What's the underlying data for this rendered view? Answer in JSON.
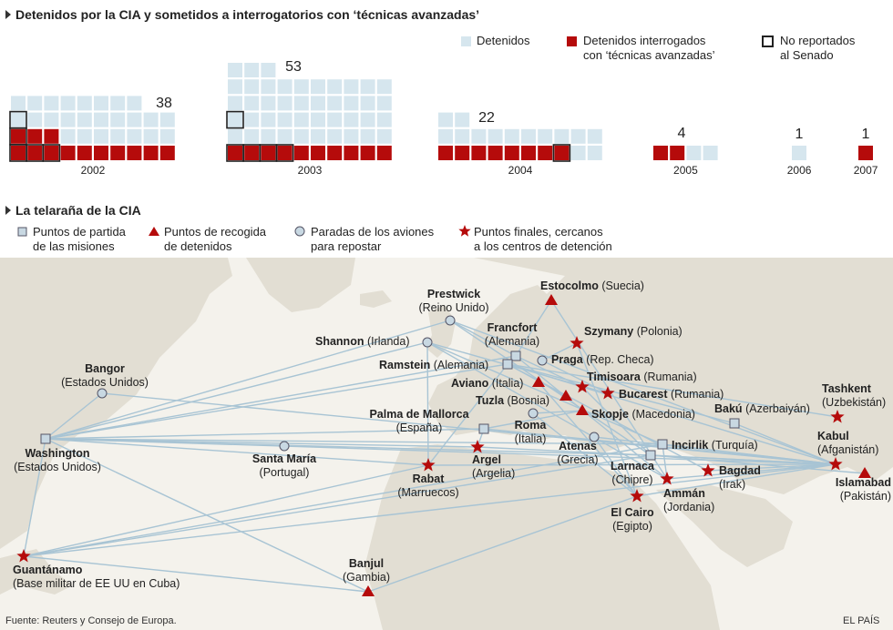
{
  "section1": {
    "title": "Detenidos por la CIA y sometidos a interrogatorios con ‘técnicas avanzadas’",
    "legend": [
      {
        "label": "Detenidos",
        "kind": "light"
      },
      {
        "label": "Detenidos interrogados\ncon ‘técnicas avanzadas’",
        "kind": "red"
      },
      {
        "label": "No reportados\nal Senado",
        "kind": "outline"
      }
    ]
  },
  "chart_data": {
    "type": "bar",
    "categories": [
      "2002",
      "2003",
      "2004",
      "2005",
      "2006",
      "2007"
    ],
    "series": [
      {
        "name": "Detenidos",
        "values": [
          38,
          53,
          22,
          4,
          1,
          1
        ]
      },
      {
        "name": "Detenidos interrogados con ‘técnicas avanzadas’",
        "values": [
          13,
          10,
          8,
          2,
          0,
          1
        ]
      },
      {
        "name": "No reportados al Senado",
        "values": [
          5,
          5,
          1,
          0,
          0,
          0
        ]
      }
    ],
    "labels": [
      "38",
      "53",
      "22",
      "4",
      "1",
      "1"
    ]
  },
  "section2": {
    "title": "La telaraña de la CIA",
    "legend": [
      {
        "label": "Puntos de partida\nde las misiones",
        "kind": "square"
      },
      {
        "label": "Puntos de recogida\nde detenidos",
        "kind": "triangle"
      },
      {
        "label": "Paradas de los aviones\npara repostar",
        "kind": "circle"
      },
      {
        "label": "Puntos finales, cercanos\na los centros de detención",
        "kind": "star"
      }
    ]
  },
  "map": {
    "places": [
      {
        "id": "washington",
        "name": "Washington",
        "sub": "(Estados Unidos)",
        "kind": "square"
      },
      {
        "id": "bangor",
        "name": "Bangor",
        "sub": "(Estados Unidos)",
        "kind": "circle"
      },
      {
        "id": "guantanamo",
        "name": "Guantánamo",
        "sub": "(Base militar de EE UU en Cuba)",
        "kind": "star"
      },
      {
        "id": "santamaria",
        "name": "Santa María",
        "sub": "(Portugal)",
        "kind": "circle"
      },
      {
        "id": "banjul",
        "name": "Banjul",
        "sub": "(Gambia)",
        "kind": "triangle"
      },
      {
        "id": "prestwick",
        "name": "Prestwick",
        "sub": "(Reino Unido)",
        "kind": "circle"
      },
      {
        "id": "shannon",
        "name": "Shannon",
        "sub": "(Irlanda)",
        "kind": "circle"
      },
      {
        "id": "rabat",
        "name": "Rabat",
        "sub": "(Marruecos)",
        "kind": "star"
      },
      {
        "id": "palma",
        "name": "Palma de Mallorca",
        "sub": "(España)",
        "kind": "square"
      },
      {
        "id": "argel",
        "name": "Argel",
        "sub": "(Argelia)",
        "kind": "star"
      },
      {
        "id": "francfort",
        "name": "Francfort",
        "sub": "(Alemania)",
        "kind": "square"
      },
      {
        "id": "ramstein",
        "name": "Ramstein",
        "sub": "(Alemania)",
        "kind": "square"
      },
      {
        "id": "estocolmo",
        "name": "Estocolmo",
        "sub": "(Suecia)",
        "kind": "triangle"
      },
      {
        "id": "praga",
        "name": "Praga",
        "sub": "(Rep. Checa)",
        "kind": "circle"
      },
      {
        "id": "szymany",
        "name": "Szymany",
        "sub": "(Polonia)",
        "kind": "star"
      },
      {
        "id": "aviano",
        "name": "Aviano",
        "sub": "(Italia)",
        "kind": "triangle"
      },
      {
        "id": "timisoara",
        "name": "Timisoara",
        "sub": "(Rumania)",
        "kind": "star"
      },
      {
        "id": "bucarest",
        "name": "Bucarest",
        "sub": "(Rumania)",
        "kind": "star"
      },
      {
        "id": "tuzla",
        "name": "Tuzla",
        "sub": "(Bosnia)",
        "kind": "triangle"
      },
      {
        "id": "roma",
        "name": "Roma",
        "sub": "(Italia)",
        "kind": "circle"
      },
      {
        "id": "skopje",
        "name": "Skopje",
        "sub": "(Macedonia)",
        "kind": "triangle"
      },
      {
        "id": "atenas",
        "name": "Atenas",
        "sub": "(Grecia)",
        "kind": "circle"
      },
      {
        "id": "larnaca",
        "name": "Larnaca",
        "sub": "(Chipre)",
        "kind": "square"
      },
      {
        "id": "incirlik",
        "name": "Incirlik",
        "sub": "(Turquía)",
        "kind": "square"
      },
      {
        "id": "baku",
        "name": "Bakú",
        "sub": "(Azerbaiyán)",
        "kind": "square"
      },
      {
        "id": "tashkent",
        "name": "Tashkent",
        "sub": "(Uzbekistán)",
        "kind": "star"
      },
      {
        "id": "kabul",
        "name": "Kabul",
        "sub": "(Afganistán)",
        "kind": "star"
      },
      {
        "id": "islamabad",
        "name": "Islamabad",
        "sub": "(Pakistán)",
        "kind": "triangle"
      },
      {
        "id": "bagdad",
        "name": "Bagdad",
        "sub": "(Irak)",
        "kind": "star"
      },
      {
        "id": "amman",
        "name": "Ammán",
        "sub": "(Jordania)",
        "kind": "star"
      },
      {
        "id": "elcairo",
        "name": "El Cairo",
        "sub": "(Egipto)",
        "kind": "star"
      }
    ]
  },
  "footer": {
    "source": "Fuente: Reuters y Consejo de Europa.",
    "brand": "EL PAÍS"
  },
  "colors": {
    "light": "#d6e6ee",
    "red": "#b50b0b",
    "route": "#a8c4d4",
    "land": "#e4e0d6",
    "sea": "#f4f2ec",
    "marker_fill": "#c8d8e2"
  }
}
